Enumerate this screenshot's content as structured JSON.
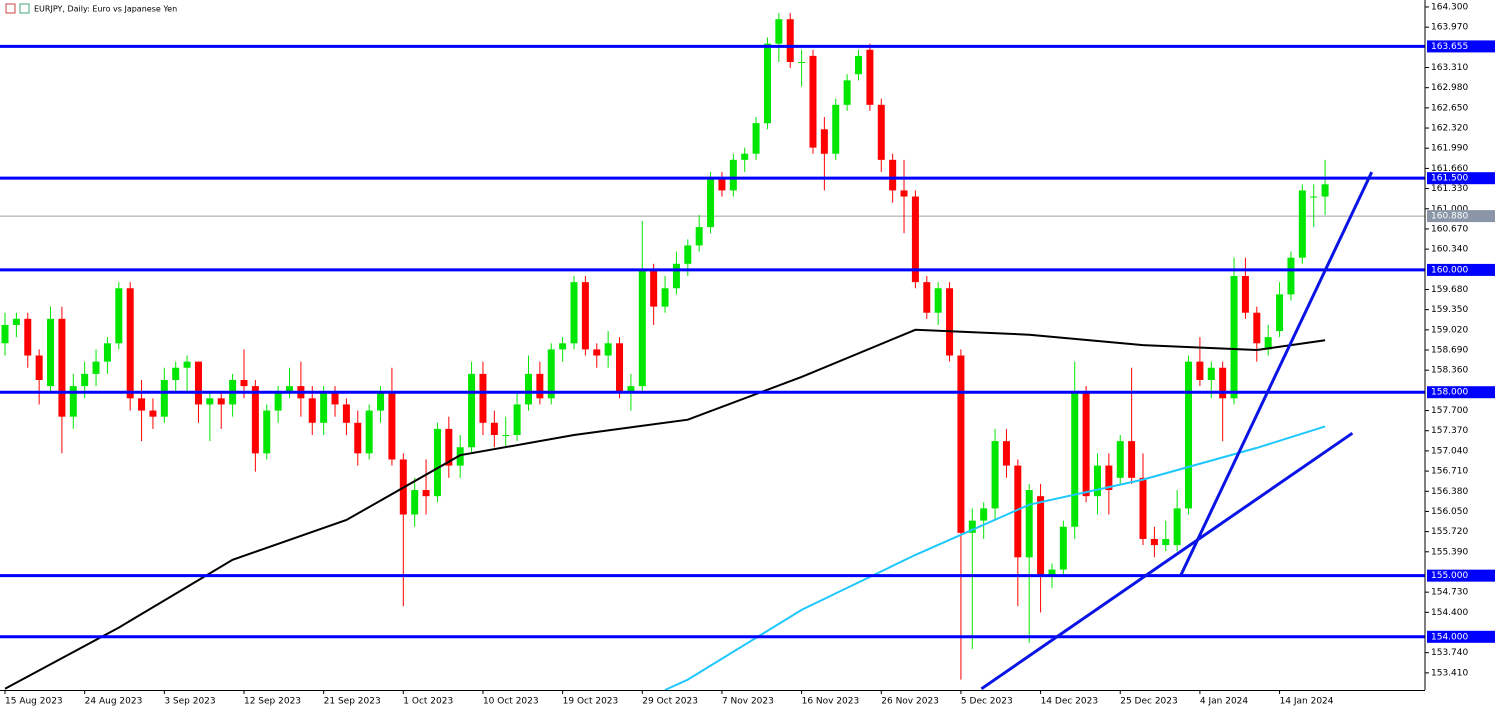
{
  "chart_data": {
    "type": "candlestick",
    "title": "EURJPY, Daily:  Euro vs Japanese Yen",
    "up_color": "#00e600",
    "down_color": "#ff0000",
    "categories": [
      "15 Aug 2023",
      null,
      null,
      null,
      null,
      null,
      null,
      "24 Aug 2023",
      null,
      null,
      null,
      null,
      null,
      null,
      "3 Sep 2023",
      null,
      null,
      null,
      null,
      null,
      null,
      "12 Sep 2023",
      null,
      null,
      null,
      null,
      null,
      null,
      "21 Sep 2023",
      null,
      null,
      null,
      null,
      null,
      null,
      "1 Oct 2023",
      null,
      null,
      null,
      null,
      null,
      null,
      "10 Oct 2023",
      null,
      null,
      null,
      null,
      null,
      null,
      "19 Oct 2023",
      null,
      null,
      null,
      null,
      null,
      null,
      "29 Oct 2023",
      null,
      null,
      null,
      null,
      null,
      null,
      "7 Nov 2023",
      null,
      null,
      null,
      null,
      null,
      null,
      "16 Nov 2023",
      null,
      null,
      null,
      null,
      null,
      null,
      "26 Nov 2023",
      null,
      null,
      null,
      null,
      null,
      null,
      "5 Dec 2023",
      null,
      null,
      null,
      null,
      null,
      null,
      "14 Dec 2023",
      null,
      null,
      null,
      null,
      null,
      null,
      "25 Dec 2023",
      null,
      null,
      null,
      null,
      null,
      null,
      "4 Jan 2024",
      null,
      null,
      null,
      null,
      null,
      null,
      "14 Jan 2024",
      null,
      null,
      null,
      null
    ],
    "ohlc": [
      [
        158.8,
        159.3,
        158.6,
        159.1
      ],
      [
        159.1,
        159.3,
        158.9,
        159.2
      ],
      [
        159.2,
        159.3,
        158.4,
        158.6
      ],
      [
        158.6,
        158.7,
        157.8,
        158.2
      ],
      [
        158.1,
        159.4,
        158.0,
        159.2
      ],
      [
        159.2,
        159.4,
        157.0,
        157.6
      ],
      [
        157.6,
        158.3,
        157.4,
        158.1
      ],
      [
        158.1,
        158.5,
        157.9,
        158.3
      ],
      [
        158.3,
        158.7,
        158.1,
        158.5
      ],
      [
        158.5,
        158.9,
        158.3,
        158.8
      ],
      [
        158.8,
        159.8,
        158.7,
        159.7
      ],
      [
        159.7,
        159.8,
        157.7,
        157.9
      ],
      [
        157.9,
        158.2,
        157.2,
        157.7
      ],
      [
        157.7,
        157.9,
        157.4,
        157.6
      ],
      [
        157.6,
        158.4,
        157.5,
        158.2
      ],
      [
        158.2,
        158.5,
        158.0,
        158.4
      ],
      [
        158.4,
        158.6,
        158.0,
        158.5
      ],
      [
        158.5,
        158.5,
        157.5,
        157.8
      ],
      [
        157.8,
        158.0,
        157.2,
        157.9
      ],
      [
        157.9,
        158.0,
        157.4,
        157.8
      ],
      [
        157.8,
        158.3,
        157.6,
        158.2
      ],
      [
        158.2,
        158.7,
        157.9,
        158.1
      ],
      [
        158.1,
        158.2,
        156.7,
        157.0
      ],
      [
        157.0,
        157.8,
        156.9,
        157.7
      ],
      [
        157.7,
        158.1,
        157.5,
        158.0
      ],
      [
        158.0,
        158.4,
        157.9,
        158.1
      ],
      [
        158.1,
        158.5,
        157.6,
        157.9
      ],
      [
        157.9,
        158.1,
        157.3,
        157.5
      ],
      [
        157.5,
        158.1,
        157.3,
        158.0
      ],
      [
        158.0,
        158.1,
        157.6,
        157.8
      ],
      [
        157.8,
        157.9,
        157.3,
        157.5
      ],
      [
        157.5,
        157.7,
        156.8,
        157.0
      ],
      [
        157.0,
        157.8,
        156.9,
        157.7
      ],
      [
        157.7,
        158.1,
        157.5,
        158.0
      ],
      [
        158.0,
        158.4,
        156.8,
        156.9
      ],
      [
        156.9,
        157.0,
        154.5,
        156.0
      ],
      [
        156.0,
        156.6,
        155.8,
        156.4
      ],
      [
        156.4,
        156.9,
        156.0,
        156.3
      ],
      [
        156.3,
        157.5,
        156.2,
        157.4
      ],
      [
        157.4,
        157.6,
        156.6,
        156.8
      ],
      [
        156.8,
        157.3,
        156.6,
        157.1
      ],
      [
        157.1,
        158.5,
        157.0,
        158.3
      ],
      [
        158.3,
        158.5,
        157.3,
        157.5
      ],
      [
        157.5,
        157.7,
        157.1,
        157.3
      ],
      [
        157.3,
        157.6,
        157.1,
        157.3
      ],
      [
        157.3,
        158.0,
        157.2,
        157.8
      ],
      [
        157.8,
        158.6,
        157.7,
        158.3
      ],
      [
        158.3,
        158.5,
        157.8,
        157.9
      ],
      [
        157.9,
        158.8,
        157.8,
        158.7
      ],
      [
        158.7,
        158.9,
        158.5,
        158.8
      ],
      [
        158.8,
        159.9,
        158.7,
        159.8
      ],
      [
        159.8,
        159.9,
        158.6,
        158.7
      ],
      [
        158.7,
        158.8,
        158.4,
        158.6
      ],
      [
        158.6,
        159.0,
        158.4,
        158.8
      ],
      [
        158.8,
        158.9,
        157.9,
        158.0
      ],
      [
        158.0,
        158.3,
        157.7,
        158.1
      ],
      [
        158.1,
        160.8,
        158.0,
        160.0
      ],
      [
        160.0,
        160.1,
        159.1,
        159.4
      ],
      [
        159.4,
        159.9,
        159.3,
        159.7
      ],
      [
        159.7,
        160.3,
        159.6,
        160.1
      ],
      [
        160.1,
        160.5,
        159.9,
        160.4
      ],
      [
        160.4,
        160.9,
        160.3,
        160.7
      ],
      [
        160.7,
        161.6,
        160.6,
        161.5
      ],
      [
        161.5,
        161.6,
        161.2,
        161.3
      ],
      [
        161.3,
        161.9,
        161.2,
        161.8
      ],
      [
        161.8,
        162.0,
        161.6,
        161.9
      ],
      [
        161.9,
        162.5,
        161.8,
        162.4
      ],
      [
        162.4,
        163.8,
        162.3,
        163.7
      ],
      [
        163.7,
        164.2,
        163.4,
        164.1
      ],
      [
        164.1,
        164.2,
        163.3,
        163.4
      ],
      [
        163.4,
        163.6,
        163.0,
        163.4
      ],
      [
        163.5,
        163.6,
        161.9,
        162.0
      ],
      [
        162.3,
        162.5,
        161.3,
        161.9
      ],
      [
        161.9,
        162.8,
        161.8,
        162.7
      ],
      [
        162.7,
        163.2,
        162.6,
        163.1
      ],
      [
        163.2,
        163.6,
        163.1,
        163.5
      ],
      [
        163.6,
        163.7,
        162.6,
        162.7
      ],
      [
        162.7,
        162.8,
        161.6,
        161.8
      ],
      [
        161.8,
        161.9,
        161.1,
        161.3
      ],
      [
        161.3,
        161.8,
        160.6,
        161.2
      ],
      [
        161.2,
        161.3,
        159.7,
        159.8
      ],
      [
        159.8,
        159.9,
        159.2,
        159.3
      ],
      [
        159.3,
        159.8,
        159.1,
        159.7
      ],
      [
        159.7,
        159.8,
        158.5,
        158.6
      ],
      [
        158.6,
        158.7,
        153.3,
        155.7
      ],
      [
        155.7,
        156.1,
        153.8,
        155.9
      ],
      [
        155.9,
        156.2,
        155.6,
        156.1
      ],
      [
        156.1,
        157.4,
        155.9,
        157.2
      ],
      [
        157.2,
        157.4,
        156.6,
        156.8
      ],
      [
        156.8,
        156.9,
        154.5,
        155.3
      ],
      [
        155.3,
        156.5,
        153.9,
        156.4
      ],
      [
        156.3,
        156.5,
        154.4,
        155.0
      ],
      [
        155.0,
        155.2,
        154.8,
        155.1
      ],
      [
        155.1,
        155.9,
        155.0,
        155.8
      ],
      [
        155.8,
        158.5,
        155.6,
        158.0
      ],
      [
        158.0,
        158.1,
        156.2,
        156.3
      ],
      [
        156.3,
        157.0,
        156.0,
        156.8
      ],
      [
        156.8,
        157.0,
        156.0,
        156.4
      ],
      [
        156.6,
        157.3,
        156.5,
        157.2
      ],
      [
        157.2,
        158.4,
        156.5,
        156.6
      ],
      [
        156.6,
        157.0,
        155.5,
        155.6
      ],
      [
        155.6,
        155.8,
        155.3,
        155.5
      ],
      [
        155.5,
        155.9,
        155.4,
        155.6
      ],
      [
        155.5,
        156.4,
        155.4,
        156.1
      ],
      [
        156.1,
        158.6,
        156.0,
        158.5
      ],
      [
        158.5,
        158.9,
        158.1,
        158.2
      ],
      [
        158.2,
        158.5,
        157.9,
        158.4
      ],
      [
        158.4,
        158.5,
        157.2,
        157.9
      ],
      [
        157.9,
        160.2,
        157.8,
        159.9
      ],
      [
        159.9,
        160.2,
        159.2,
        159.3
      ],
      [
        159.3,
        159.4,
        158.5,
        158.8
      ],
      [
        158.7,
        159.1,
        158.6,
        158.9
      ],
      [
        159.0,
        159.8,
        158.9,
        159.6
      ],
      [
        159.6,
        160.3,
        159.5,
        160.2
      ],
      [
        160.2,
        161.4,
        160.1,
        161.3
      ],
      [
        161.2,
        161.4,
        160.7,
        161.2
      ],
      [
        161.2,
        161.8,
        160.9,
        161.4
      ]
    ],
    "ma": [
      {
        "color": "#000000",
        "x": [
          0,
          10,
          20,
          30,
          40,
          50,
          60,
          70,
          80,
          90,
          100,
          110,
          116
        ],
        "values": [
          153.15,
          154.15,
          155.26,
          155.91,
          156.97,
          157.3,
          157.55,
          158.25,
          159.02,
          158.94,
          158.77,
          158.69,
          158.85
        ]
      },
      {
        "color": "#1ec8ff",
        "x": [
          58,
          60,
          70,
          80,
          90,
          100,
          110,
          116
        ],
        "values": [
          153.13,
          153.3,
          154.44,
          155.34,
          156.16,
          156.57,
          157.09,
          157.44
        ]
      }
    ],
    "trendlines": [
      {
        "color": "#0a14e6",
        "x": [
          85.8,
          118.4
        ],
        "values": [
          153.15,
          157.33
        ]
      },
      {
        "color": "#0a14e6",
        "x": [
          103.3,
          120.1
        ],
        "values": [
          155.0,
          161.6
        ]
      }
    ],
    "levels": [
      163.655,
      {
        "value": 161.5,
        "label": "161.500"
      },
      {
        "value": 160.0,
        "label": "160.000"
      },
      {
        "value": 158.0,
        "label": "158.000"
      },
      {
        "value": 155.0,
        "label": "155.000"
      },
      {
        "value": 154.0,
        "label": "154.000"
      }
    ],
    "level_color": "#0000ff",
    "last_price": {
      "value": 160.88,
      "label": "160.880"
    },
    "xlim": [
      -0.44,
      124.78
    ],
    "ylim": [
      153.13,
      164.414
    ],
    "yticks": [
      {
        "value": 164.3,
        "label": "164.300"
      },
      {
        "value": 163.97,
        "label": "163.970"
      },
      {
        "value": 163.31,
        "label": "163.310"
      },
      {
        "value": 162.98,
        "label": "162.980"
      },
      {
        "value": 162.65,
        "label": "162.650"
      },
      {
        "value": 162.32,
        "label": "162.320"
      },
      {
        "value": 161.99,
        "label": "161.990"
      },
      {
        "value": 161.66,
        "label": "161.660"
      },
      {
        "value": 161.33,
        "label": "161.330"
      },
      {
        "value": 161.0,
        "label": "161.000"
      },
      {
        "value": 160.67,
        "label": "160.670"
      },
      {
        "value": 160.34,
        "label": "160.340"
      },
      {
        "value": 159.68,
        "label": "159.680"
      },
      {
        "value": 159.35,
        "label": "159.350"
      },
      {
        "value": 159.02,
        "label": "159.020"
      },
      {
        "value": 158.69,
        "label": "158.690"
      },
      {
        "value": 158.36,
        "label": "158.360"
      },
      {
        "value": 157.7,
        "label": "157.700"
      },
      {
        "value": 157.37,
        "label": "157.370"
      },
      {
        "value": 157.04,
        "label": "157.040"
      },
      {
        "value": 156.71,
        "label": "156.710"
      },
      {
        "value": 156.38,
        "label": "156.380"
      },
      {
        "value": 156.05,
        "label": "156.050"
      },
      {
        "value": 155.72,
        "label": "155.720"
      },
      {
        "value": 155.39,
        "label": "155.390"
      },
      {
        "value": 154.73,
        "label": "154.730"
      },
      {
        "value": 154.4,
        "label": "154.400"
      },
      {
        "value": 153.74,
        "label": "153.740"
      },
      {
        "value": 153.41,
        "label": "153.410"
      }
    ]
  }
}
